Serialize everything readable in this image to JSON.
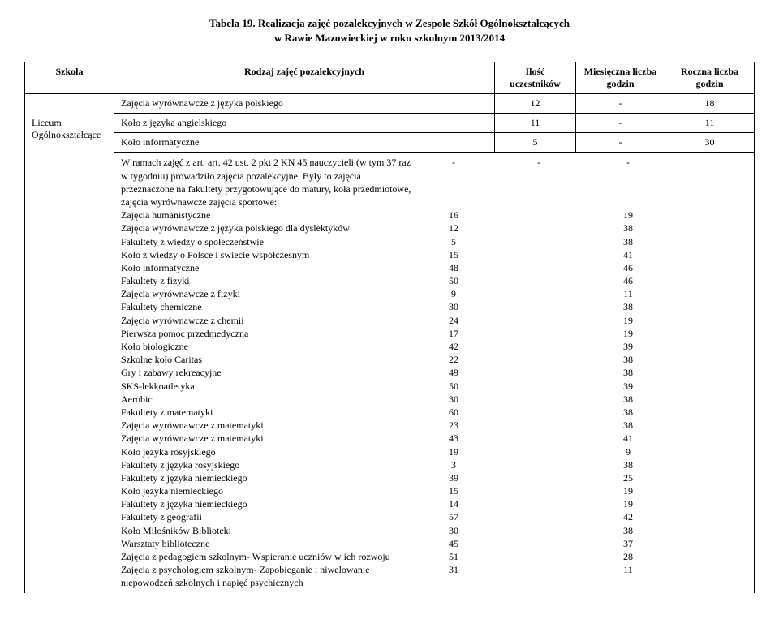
{
  "title_line1": "Tabela 19. Realizacja zajęć pozalekcyjnych w Zespole Szkół Ogólnokształcących",
  "title_line2": "w Rawie Mazowieckiej w roku szkolnym 2013/2014",
  "headers": {
    "school": "Szkoła",
    "activity": "Rodzaj zajęć pozalekcyjnych",
    "count": "Ilość uczestników",
    "monthly": "Miesięczna liczba godzin",
    "yearly": "Roczna liczba godzin"
  },
  "school_name": "Liceum Ogólnokształcące",
  "row1": {
    "activity": "Zajęcia wyrównawcze z języka polskiego",
    "count": "12",
    "monthly": "-",
    "yearly": "18"
  },
  "row2": {
    "activity": "Koło z języka angielskiego",
    "count": "11",
    "monthly": "-",
    "yearly": "11"
  },
  "row3": {
    "activity": "Koło informatyczne",
    "count": "5",
    "monthly": "-",
    "yearly": "30"
  },
  "intro": "W ramach zajęć z art. art. 42 ust. 2 pkt 2 KN   45 nauczycieli (w tym 37 raz w tygodniu)  prowadziło zajęcia pozalekcyjne. Były to zajęcia przeznaczone na fakultety przygotowujące do matury, koła przedmiotowe, zajęcia wyrównawcze zajęcia sportowe:",
  "intro_dash": "-",
  "details": [
    {
      "label": "Zajęcia humanistyczne",
      "c1": "16",
      "c3": "19"
    },
    {
      "label": "Zajęcia wyrównawcze z języka polskiego dla dyslektyków",
      "c1": "12",
      "c3": "38"
    },
    {
      "label": "Fakultety z wiedzy o społeczeństwie",
      "c1": "5",
      "c3": "38"
    },
    {
      "label": "Koło z wiedzy o Polsce i świecie współczesnym",
      "c1": "15",
      "c3": "41"
    },
    {
      "label": "Koło informatyczne",
      "c1": "48",
      "c3": "46"
    },
    {
      "label": "Fakultety z fizyki",
      "c1": "50",
      "c3": "46"
    },
    {
      "label": "Zajęcia wyrównawcze z fizyki",
      "c1": "9",
      "c3": "11"
    },
    {
      "label": "Fakultety chemiczne",
      "c1": "30",
      "c3": "38"
    },
    {
      "label": "Zajęcia wyrównawcze z chemii",
      "c1": "24",
      "c3": "19"
    },
    {
      "label": "Pierwsza pomoc przedmedyczna",
      "c1": "17",
      "c3": "19"
    },
    {
      "label": "Koło biologiczne",
      "c1": "42",
      "c3": "39"
    },
    {
      "label": "Szkolne koło Caritas",
      "c1": "22",
      "c3": "38"
    },
    {
      "label": "Gry i zabawy rekreacyjne",
      "c1": "49",
      "c3": "38"
    },
    {
      "label": "SKS-lekkoatletyka",
      "c1": "50",
      "c3": "39"
    },
    {
      "label": "Aerobic",
      "c1": "30",
      "c3": "38"
    },
    {
      "label": "Fakultety z matematyki",
      "c1": "60",
      "c3": "38"
    },
    {
      "label": "Zajęcia wyrównawcze z matematyki",
      "c1": "23",
      "c3": "38"
    },
    {
      "label": "Zajęcia wyrównawcze z matematyki",
      "c1": "43",
      "c3": "41"
    },
    {
      "label": "Koło języka rosyjskiego",
      "c1": "19",
      "c3": "9"
    },
    {
      "label": "Fakultety z języka rosyjskiego",
      "c1": "3",
      "c3": "38"
    },
    {
      "label": "Fakultety z języka niemieckiego",
      "c1": "39",
      "c3": "25"
    },
    {
      "label": "Koło języka niemieckiego",
      "c1": "15",
      "c3": "19"
    },
    {
      "label": "Fakultety z języka niemieckiego",
      "c1": "14",
      "c3": "19"
    },
    {
      "label": "Fakultety z geografii",
      "c1": "57",
      "c3": "42"
    },
    {
      "label": "Koło Miłośników Biblioteki",
      "c1": "30",
      "c3": "38"
    },
    {
      "label": "Warsztaty biblioteczne",
      "c1": "45",
      "c3": "37"
    },
    {
      "label": "Zajęcia z pedagogiem szkolnym- Wspieranie uczniów w ich rozwoju",
      "c1": "51",
      "c3": "28"
    },
    {
      "label": "Zajęcia z psychologiem szkolnym- Zapobieganie i niwelowanie niepowodzeń szkolnych i napięć psychicznych",
      "c1": "31",
      "c3": "11"
    }
  ]
}
